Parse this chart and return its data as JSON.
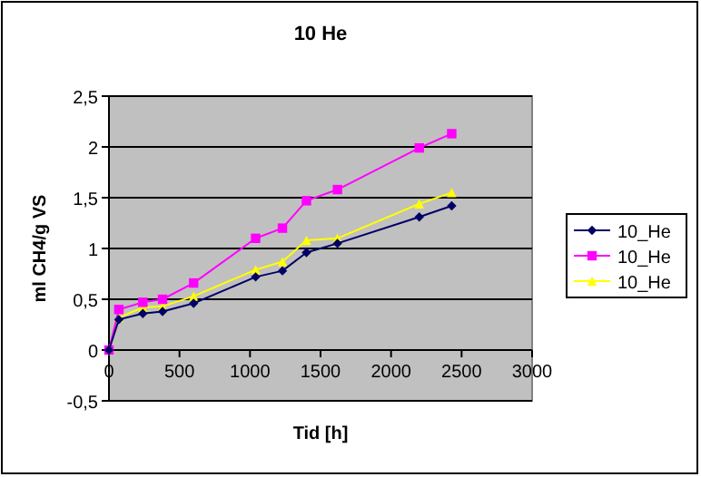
{
  "chart_data": {
    "type": "line",
    "title": "10 He",
    "xlabel": "Tid [h]",
    "ylabel": "ml CH4/g VS",
    "x": [
      0,
      70,
      240,
      380,
      600,
      1040,
      1230,
      1400,
      1620,
      2200,
      2430
    ],
    "series": [
      {
        "name": "10_He",
        "color": "#000066",
        "marker": "diamond",
        "values": [
          0,
          0.3,
          0.36,
          0.38,
          0.46,
          0.72,
          0.78,
          0.96,
          1.05,
          1.31,
          1.42
        ]
      },
      {
        "name": "10_He",
        "color": "#ff00ff",
        "marker": "square",
        "values": [
          0,
          0.4,
          0.47,
          0.5,
          0.66,
          1.1,
          1.2,
          1.47,
          1.58,
          1.99,
          2.13
        ]
      },
      {
        "name": "10_He",
        "color": "#ffff00",
        "marker": "triangle",
        "values": [
          0,
          0.32,
          0.42,
          0.43,
          0.53,
          0.79,
          0.87,
          1.08,
          1.1,
          1.44,
          1.55
        ]
      }
    ],
    "xlim": [
      0,
      3000
    ],
    "xticks": [
      0,
      500,
      1000,
      1500,
      2000,
      2500,
      3000
    ],
    "ylim": [
      -0.5,
      2.5
    ],
    "yticks": [
      {
        "value": -0.5,
        "label": "-0,5"
      },
      0,
      {
        "value": 0.5,
        "label": "0,5"
      },
      1,
      {
        "value": 1.5,
        "label": "1,5"
      },
      2,
      {
        "value": 2.5,
        "label": "2,5"
      }
    ],
    "grid": "y",
    "legend": "right"
  }
}
